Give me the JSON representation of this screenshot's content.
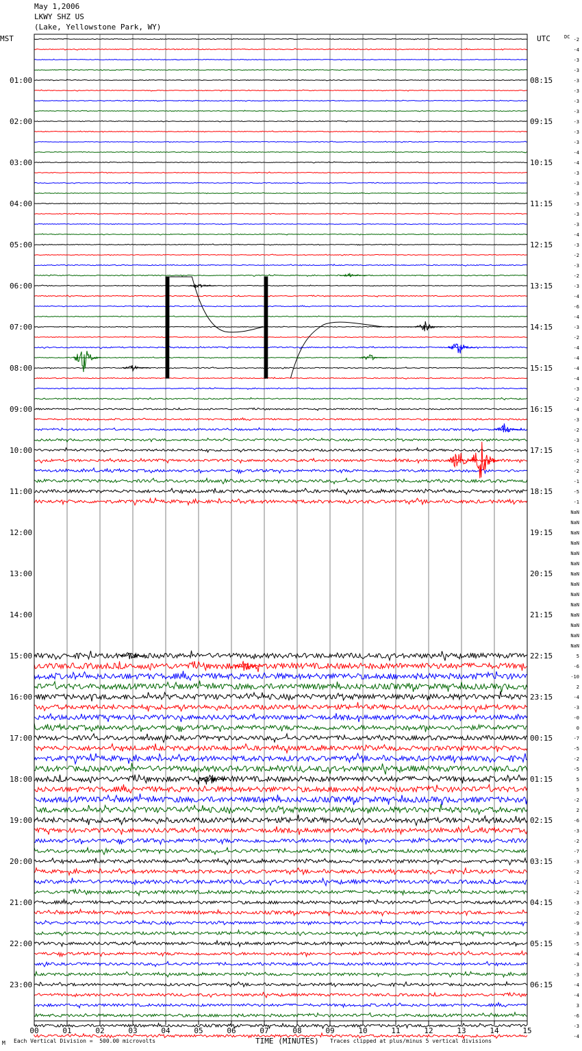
{
  "header": {
    "date": "May 1,2006",
    "station": "LKWY SHZ US",
    "location": "(Lake, Yellowstone Park, WY)"
  },
  "labels": {
    "left_zone": "MST",
    "right_zone": "UTC",
    "dc": "DC",
    "xlabel": "TIME (MINUTES)",
    "scale_note": "Each Vertical Division =  500.00 microvolts",
    "clip_note": "Traces clipped at plus/minus 5 vertical divisions",
    "corner_mark": "M"
  },
  "colors": {
    "trace_cycle": [
      "#000000",
      "#ff0000",
      "#0000ff",
      "#006600"
    ],
    "grid": "#808080"
  },
  "chart_data": {
    "type": "line",
    "title": "LKWY SHZ US",
    "x_ticks": [
      "00",
      "01",
      "02",
      "03",
      "04",
      "05",
      "06",
      "07",
      "08",
      "09",
      "10",
      "11",
      "12",
      "13",
      "14",
      "15"
    ],
    "xlim": [
      0,
      15
    ],
    "left_hours": [
      "01:00",
      "02:00",
      "03:00",
      "04:00",
      "05:00",
      "06:00",
      "07:00",
      "08:00",
      "09:00",
      "10:00",
      "11:00",
      "12:00",
      "13:00",
      "14:00",
      "15:00",
      "16:00",
      "17:00",
      "18:00",
      "19:00",
      "20:00",
      "21:00",
      "22:00",
      "23:00"
    ],
    "right_hours": [
      "08:15",
      "09:15",
      "10:15",
      "11:15",
      "12:15",
      "13:15",
      "14:15",
      "15:15",
      "16:15",
      "17:15",
      "18:15",
      "19:15",
      "20:15",
      "21:15",
      "22:15",
      "23:15",
      "00:15",
      "01:15",
      "02:15",
      "03:15",
      "04:15",
      "05:15",
      "06:15"
    ],
    "dc_offsets": [
      "-2",
      "-4",
      "-3",
      "-3",
      "-3",
      "-3",
      "-3",
      "-3",
      "-3",
      "-3",
      "-3",
      "-4",
      "-4",
      "-3",
      "-3",
      "-3",
      "-3",
      "-3",
      "-3",
      "-4",
      "-3",
      "-2",
      "-3",
      "-2",
      "-3",
      "-4",
      "-6",
      "-4",
      "-3",
      "-2",
      "-4",
      "-4",
      "-4",
      "-4",
      "-3",
      "-2",
      "-4",
      "-3",
      "-2",
      "-3",
      "-1",
      "-2",
      "-2",
      "-1",
      "-5",
      "-1",
      "NaN",
      "NaN",
      "NaN",
      "NaN",
      "NaN",
      "NaN",
      "NaN",
      "NaN",
      "NaN",
      "NaN",
      "NaN",
      "NaN",
      "NaN",
      "NaN",
      "5",
      "-6",
      "-10",
      "2",
      "-4",
      "-3",
      "-0",
      "0",
      "-7",
      "-5",
      "-2",
      "-5",
      "5",
      "5",
      "-2",
      "2",
      "-6",
      "-3",
      "-2",
      "-7",
      "-3",
      "-2",
      "-1",
      "-2",
      "-3",
      "-2",
      "-9",
      "-3",
      "-5",
      "-4",
      "-3",
      "-3",
      "-4",
      "-4",
      "3",
      "-6",
      "-3",
      "-4"
    ],
    "activity": [
      0.3,
      0.4,
      0.3,
      0.3,
      0.3,
      0.3,
      0.3,
      0.3,
      0.3,
      0.3,
      0.3,
      0.3,
      0.3,
      0.3,
      0.3,
      0.3,
      0.3,
      0.3,
      0.3,
      0.3,
      0.3,
      0.3,
      0.4,
      0.4,
      0.3,
      0.4,
      0.4,
      0.3,
      0.3,
      0.3,
      0.5,
      0.3,
      0.4,
      0.4,
      0.4,
      0.5,
      0.6,
      0.7,
      0.8,
      0.9,
      1.0,
      1.1,
      1.2,
      1.3,
      1.4,
      1.5,
      0,
      0,
      0,
      0,
      0,
      0,
      0,
      0,
      0,
      0,
      0,
      0,
      0,
      0,
      2.2,
      2.6,
      2.6,
      2.5,
      2.4,
      2.1,
      2.0,
      2.1,
      2.0,
      2.1,
      2.3,
      2.5,
      2.4,
      2.4,
      2.5,
      2.5,
      2.3,
      1.9,
      1.8,
      1.6,
      1.5,
      1.6,
      1.7,
      1.5,
      1.4,
      1.4,
      1.3,
      1.3,
      1.3,
      1.3,
      1.2,
      1.2,
      1.2,
      1.2,
      1.2,
      1.3,
      1.2,
      1.2
    ],
    "events": [
      {
        "trace": 23,
        "minute": 9.6,
        "amp": 3
      },
      {
        "trace": 24,
        "minute": 5.0,
        "amp": 5
      },
      {
        "trace": 28,
        "minute": 11.9,
        "amp": 8
      },
      {
        "trace": 30,
        "minute": 12.9,
        "amp": 14
      },
      {
        "trace": 31,
        "minute": 1.5,
        "amp": 22
      },
      {
        "trace": 31,
        "minute": 10.2,
        "amp": 6
      },
      {
        "trace": 32,
        "minute": 3.0,
        "amp": 5
      },
      {
        "trace": 38,
        "minute": 14.3,
        "amp": 9
      },
      {
        "trace": 41,
        "minute": 12.9,
        "amp": 20
      },
      {
        "trace": 41,
        "minute": 13.6,
        "amp": 40
      },
      {
        "trace": 60,
        "minute": 2.9,
        "amp": 9
      },
      {
        "trace": 61,
        "minute": 6.4,
        "amp": 12
      },
      {
        "trace": 72,
        "minute": 5.3,
        "amp": 14
      }
    ],
    "grid": true
  }
}
